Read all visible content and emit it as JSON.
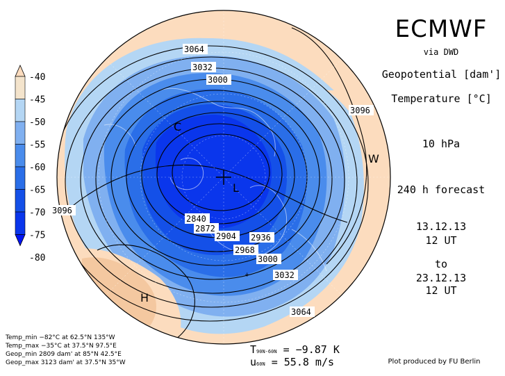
{
  "header": {
    "title": "ECMWF",
    "source": "via DWD",
    "param1": "Geopotential [dam']",
    "param2": "Temperature [°C]",
    "level": "10 hPa",
    "forecast": "240 h forecast",
    "date_start": "13.12.13",
    "time_start": "12 UT",
    "to": "to",
    "date_end": "23.12.13",
    "time_end": "12 UT"
  },
  "legend": {
    "labels": [
      "-40",
      "-45",
      "-50",
      "-55",
      "-60",
      "-65",
      "-70",
      "-75",
      "-80"
    ],
    "colors": [
      "#fcdcbe",
      "#f4e4cc",
      "#b4d6f4",
      "#80b0f0",
      "#4a8cec",
      "#2a6ee8",
      "#1450e8",
      "#0a36ec",
      "#0014f4"
    ]
  },
  "stats": {
    "temp_min": "Temp_min −82°C at 62.5°N 135°W",
    "temp_max": "Temp_max −35°C at 37.5°N 97.5°E",
    "geop_min": "Geop_min 2809 dam' at 85°N 42.5°E",
    "geop_max": "Geop_max 3123 dam' at 37.5°N 35°W"
  },
  "diagnostics": {
    "t_symbol": "T",
    "t_sub": "90N-60N",
    "t_value": " = −9.87 K",
    "u_symbol": "u",
    "u_sub": "60N",
    "u_value": "  = 55.8 m/s"
  },
  "contour_labels": [
    "3064",
    "3032",
    "3000",
    "3096",
    "3096",
    "2840",
    "2872",
    "2904",
    "2936",
    "2968",
    "3000",
    "3032",
    "3064"
  ],
  "map_markers": [
    "C",
    "L",
    "W",
    "H",
    "+"
  ],
  "credit": "Plot produced by FU Berlin"
}
